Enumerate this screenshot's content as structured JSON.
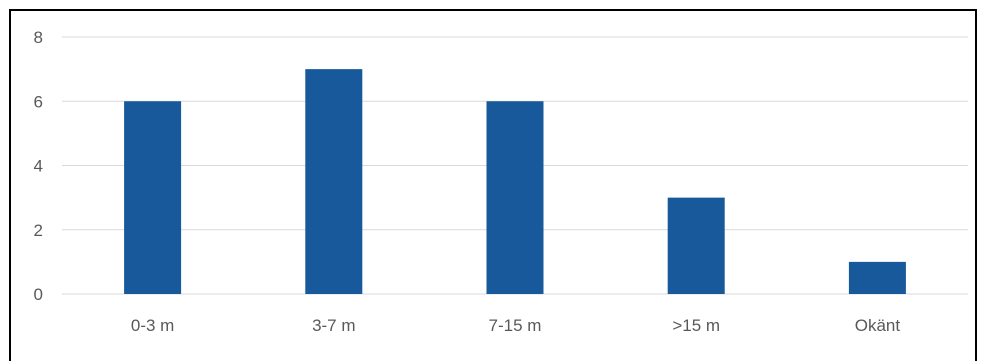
{
  "chart_data": {
    "type": "bar",
    "categories": [
      "0-3 m",
      "3-7 m",
      "7-15 m",
      ">15 m",
      "Okänt"
    ],
    "values": [
      6,
      7,
      6,
      3,
      1
    ],
    "yticks": [
      "0",
      "2",
      "4",
      "6",
      "8"
    ],
    "ylim": [
      0,
      8
    ],
    "grid": true,
    "title": "",
    "xlabel": "",
    "ylabel": "",
    "bar_color": "#17599a",
    "grid_color": "#d9d9d9",
    "label_color": "#595959"
  }
}
